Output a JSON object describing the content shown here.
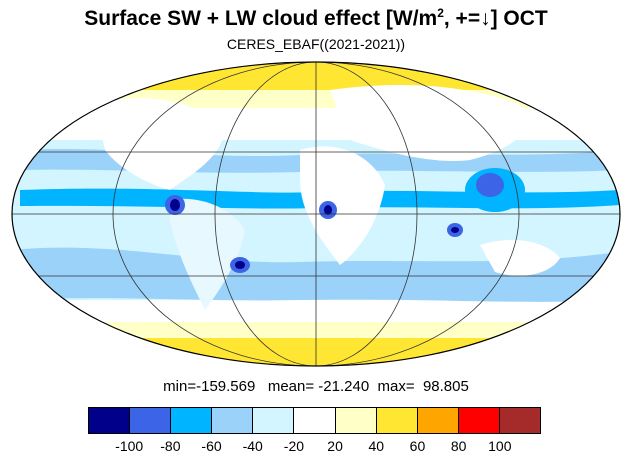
{
  "title": {
    "prefix": "Surface SW + LW cloud effect [W/m",
    "sup": "2",
    "suffix": ", +=↓]  OCT"
  },
  "subtitle": "CERES_EBAF((2021-2021))",
  "stats": {
    "min_label": "min=-159.569",
    "mean_label": "mean= -21.240",
    "max_label": "max=  98.805"
  },
  "projection": "Mollweide",
  "colorbar": {
    "colors": [
      "#00008b",
      "#3c64e6",
      "#00b4ff",
      "#9bd2fa",
      "#d2f5ff",
      "#ffffff",
      "#ffffc8",
      "#ffe632",
      "#ffa500",
      "#ff0000",
      "#a52a2a"
    ],
    "ticks": [
      "-100",
      "-80",
      "-60",
      "-40",
      "-20",
      "20",
      "40",
      "60",
      "80",
      "100"
    ]
  },
  "map_fields": {
    "ocean_base": "#d2f5ff",
    "land_base": "#ffffff",
    "polar_color": "#ffe632",
    "polar_light": "#ffffc8"
  }
}
